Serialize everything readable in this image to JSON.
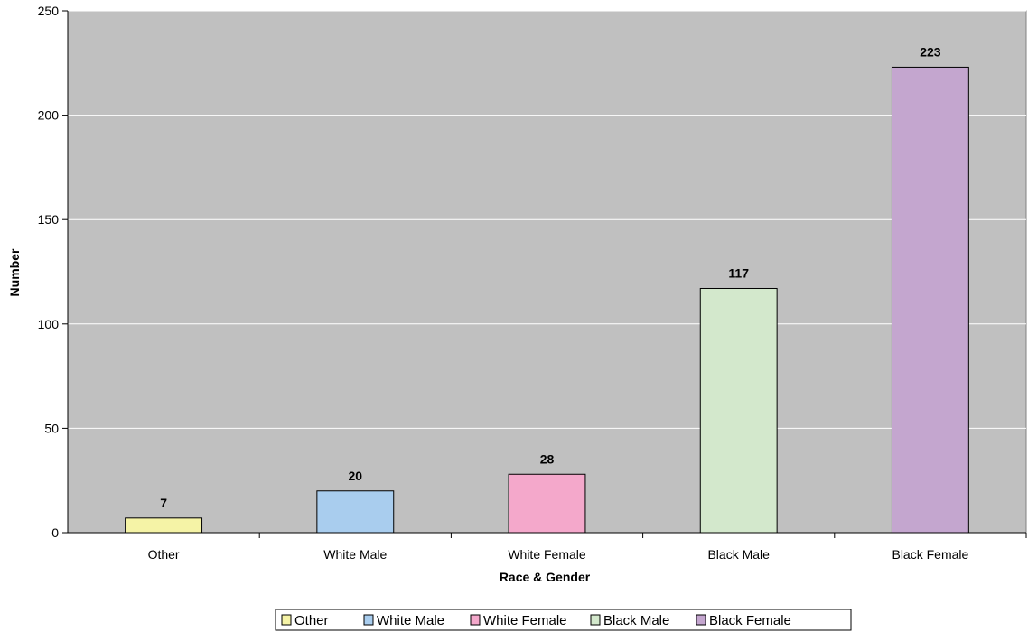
{
  "chart_data": {
    "type": "bar",
    "categories": [
      "Other",
      "White Male",
      "White Female",
      "Black Male",
      "Black Female"
    ],
    "values": [
      7,
      20,
      28,
      117,
      223
    ],
    "colors": [
      "#f5f3a6",
      "#a9cdee",
      "#f4a8cb",
      "#d3e8cc",
      "#c4a6cf"
    ],
    "xlabel": "Race & Gender",
    "ylabel": "Number",
    "ylim": [
      0,
      250
    ],
    "yticks": [
      0,
      50,
      100,
      150,
      200,
      250
    ],
    "grid": true,
    "plot_background": "#c0c0c0",
    "legend_position": "bottom",
    "data_labels": true
  }
}
